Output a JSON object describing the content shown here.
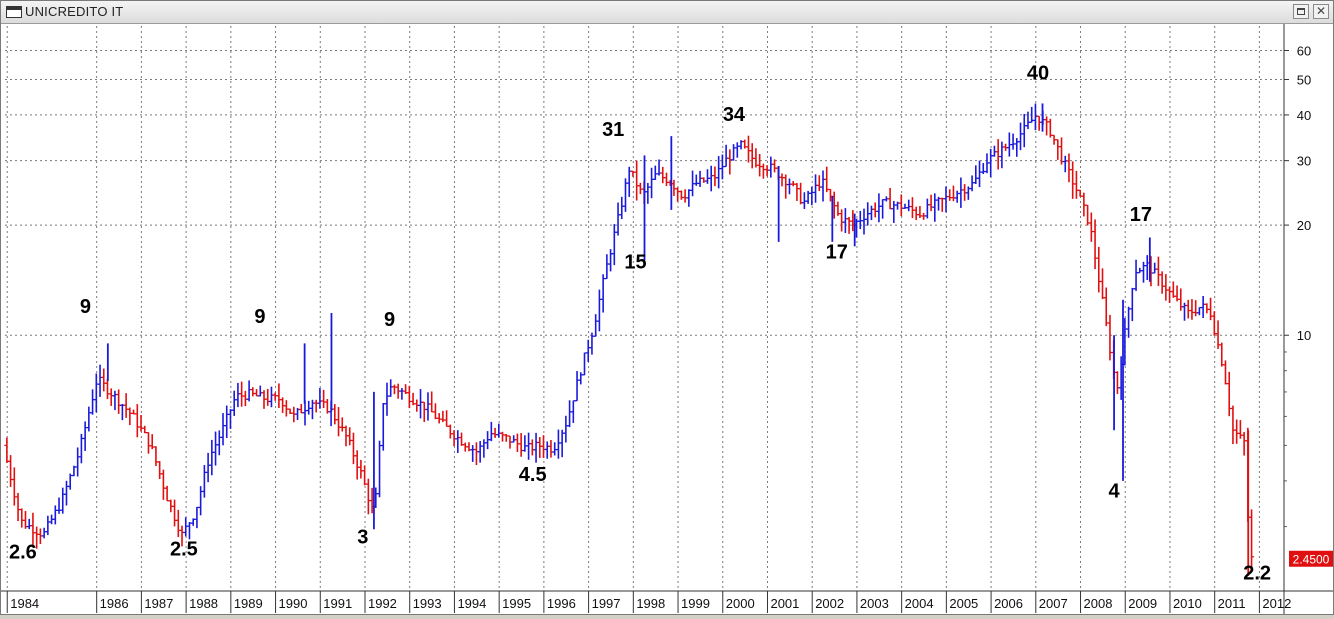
{
  "window": {
    "title": "UNICREDITO IT",
    "close_glyph": "✕",
    "icons": [
      "window-icon",
      "restore-icon",
      "close-icon"
    ]
  },
  "colors": {
    "up": "#1a1adc",
    "down": "#e01010",
    "grid": "#7a7a7a",
    "last_price_bg": "#e01010"
  },
  "chart_data": {
    "type": "bar",
    "title": "UNICREDITO IT",
    "y_scale": "log",
    "ylim": [
      2.0,
      70
    ],
    "y_ticks": [
      10,
      20,
      30,
      40,
      50,
      60
    ],
    "x_ticks": [
      "1984",
      "1986",
      "1987",
      "1988",
      "1989",
      "1990",
      "1991",
      "1992",
      "1993",
      "1994",
      "1995",
      "1996",
      "1997",
      "1998",
      "1999",
      "2000",
      "2001",
      "2002",
      "2003",
      "2004",
      "2005",
      "2006",
      "2007",
      "2008",
      "2009",
      "2010",
      "2011",
      "2012"
    ],
    "x_range": [
      1984.0,
      2012.6
    ],
    "grid": true,
    "last_price": "2.4500",
    "anchors": [
      [
        1984.0,
        5.0
      ],
      [
        1984.4,
        3.1
      ],
      [
        1984.9,
        2.85
      ],
      [
        1985.3,
        3.5
      ],
      [
        1985.7,
        4.8
      ],
      [
        1986.1,
        7.6
      ],
      [
        1986.6,
        6.6
      ],
      [
        1986.9,
        6.0
      ],
      [
        1987.3,
        5.0
      ],
      [
        1987.7,
        3.5
      ],
      [
        1988.0,
        2.85
      ],
      [
        1988.3,
        3.3
      ],
      [
        1988.6,
        4.6
      ],
      [
        1988.9,
        5.5
      ],
      [
        1989.2,
        6.8
      ],
      [
        1989.5,
        6.9
      ],
      [
        1989.9,
        6.7
      ],
      [
        1990.2,
        6.7
      ],
      [
        1990.5,
        6.0
      ],
      [
        1990.9,
        6.6
      ],
      [
        1991.3,
        6.3
      ],
      [
        1991.7,
        5.2
      ],
      [
        1992.0,
        4.2
      ],
      [
        1992.3,
        3.2
      ],
      [
        1992.5,
        6.6
      ],
      [
        1992.7,
        7.3
      ],
      [
        1993.0,
        6.9
      ],
      [
        1993.5,
        6.3
      ],
      [
        1993.9,
        5.6
      ],
      [
        1994.2,
        5.2
      ],
      [
        1994.6,
        4.8
      ],
      [
        1994.9,
        5.4
      ],
      [
        1995.3,
        5.2
      ],
      [
        1995.7,
        4.9
      ],
      [
        1996.0,
        5.0
      ],
      [
        1996.3,
        4.9
      ],
      [
        1996.6,
        5.8
      ],
      [
        1996.9,
        7.9
      ],
      [
        1997.2,
        10.5
      ],
      [
        1997.5,
        15.5
      ],
      [
        1997.8,
        22.0
      ],
      [
        1998.0,
        28.5
      ],
      [
        1998.3,
        24.0
      ],
      [
        1998.6,
        27.5
      ],
      [
        1998.9,
        26.5
      ],
      [
        1999.2,
        24.0
      ],
      [
        1999.5,
        26.0
      ],
      [
        1999.9,
        27.0
      ],
      [
        2000.2,
        30.5
      ],
      [
        2000.5,
        33.0
      ],
      [
        2000.8,
        30.0
      ],
      [
        2001.2,
        28.5
      ],
      [
        2001.6,
        26.0
      ],
      [
        2001.9,
        23.0
      ],
      [
        2002.3,
        26.5
      ],
      [
        2002.7,
        21.0
      ],
      [
        2003.0,
        20.0
      ],
      [
        2003.3,
        21.5
      ],
      [
        2003.7,
        23.0
      ],
      [
        2004.1,
        22.5
      ],
      [
        2004.5,
        21.5
      ],
      [
        2004.9,
        23.0
      ],
      [
        2005.3,
        24.5
      ],
      [
        2005.7,
        26.0
      ],
      [
        2006.0,
        30.0
      ],
      [
        2006.4,
        32.5
      ],
      [
        2006.8,
        36.0
      ],
      [
        2007.1,
        40.0
      ],
      [
        2007.4,
        36.5
      ],
      [
        2007.7,
        30.0
      ],
      [
        2008.0,
        25.0
      ],
      [
        2008.3,
        20.0
      ],
      [
        2008.6,
        12.0
      ],
      [
        2008.9,
        7.0
      ],
      [
        2009.1,
        10.5
      ],
      [
        2009.3,
        15.0
      ],
      [
        2009.6,
        15.5
      ],
      [
        2009.9,
        14.0
      ],
      [
        2010.2,
        12.5
      ],
      [
        2010.5,
        11.5
      ],
      [
        2010.8,
        12.0
      ],
      [
        2011.0,
        11.5
      ],
      [
        2011.3,
        8.0
      ],
      [
        2011.5,
        5.5
      ],
      [
        2011.75,
        5.1
      ],
      [
        2011.88,
        2.45
      ]
    ],
    "spikes": [
      [
        1986.3,
        9.5,
        7.5
      ],
      [
        1990.7,
        9.5,
        6.5
      ],
      [
        1991.3,
        11.5,
        6.2
      ],
      [
        1992.25,
        7.0,
        2.95
      ],
      [
        1998.3,
        31.0,
        16.0
      ],
      [
        1998.9,
        35.0,
        22.0
      ],
      [
        2001.3,
        29.0,
        18.0
      ],
      [
        2002.5,
        24.0,
        18.0
      ],
      [
        2003.0,
        21.5,
        17.5
      ],
      [
        2007.2,
        43.0,
        36.0
      ],
      [
        2009.0,
        12.5,
        4.0
      ],
      [
        2008.8,
        10.0,
        5.5
      ],
      [
        2009.6,
        18.5,
        14.0
      ],
      [
        2011.8,
        5.5,
        2.2
      ]
    ],
    "annotations": [
      {
        "text": "2.6",
        "x": 1984.4,
        "y": 2.45
      },
      {
        "text": "9",
        "x": 1985.8,
        "y": 11.5
      },
      {
        "text": "2.5",
        "x": 1988.0,
        "y": 2.5
      },
      {
        "text": "9",
        "x": 1989.7,
        "y": 10.8
      },
      {
        "text": "3",
        "x": 1992.0,
        "y": 2.7
      },
      {
        "text": "9",
        "x": 1992.6,
        "y": 10.6
      },
      {
        "text": "4.5",
        "x": 1995.8,
        "y": 4.0
      },
      {
        "text": "31",
        "x": 1997.6,
        "y": 35.0
      },
      {
        "text": "15",
        "x": 1998.1,
        "y": 15.2
      },
      {
        "text": "34",
        "x": 2000.3,
        "y": 38.5
      },
      {
        "text": "17",
        "x": 2002.6,
        "y": 16.2
      },
      {
        "text": "40",
        "x": 2007.1,
        "y": 50.0
      },
      {
        "text": "4",
        "x": 2008.8,
        "y": 3.6
      },
      {
        "text": "17",
        "x": 2009.4,
        "y": 20.5
      },
      {
        "text": "2.2",
        "x": 2012.0,
        "y": 2.15
      }
    ]
  }
}
